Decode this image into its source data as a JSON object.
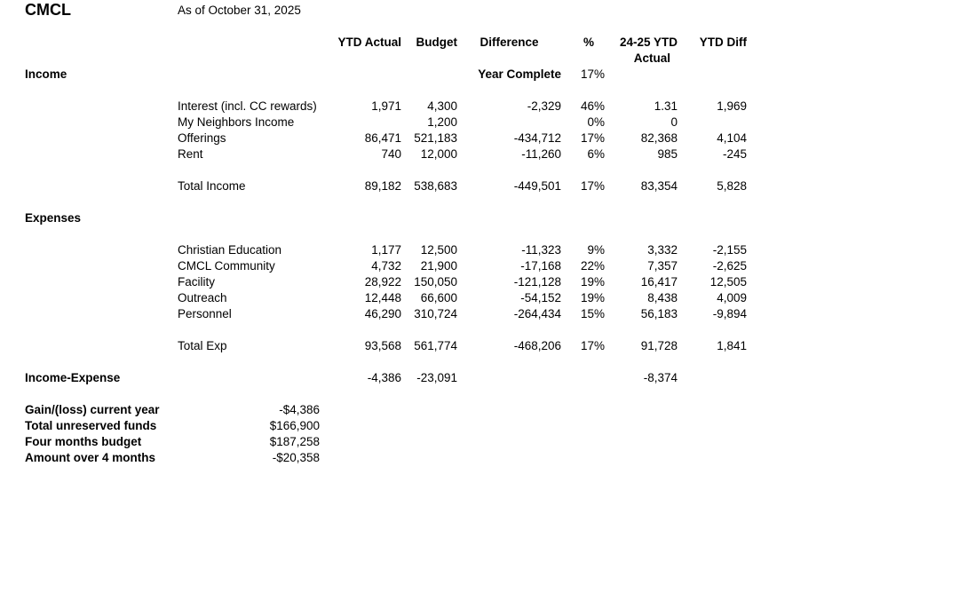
{
  "report": {
    "title": "CMCL",
    "as_of": "As of October 31, 2025",
    "columns": {
      "ytd_actual": "YTD Actual",
      "budget": "Budget",
      "difference": "Difference",
      "pct": "%",
      "prior_ytd_line1": "24-25 YTD",
      "prior_ytd_line2": "Actual",
      "ytd_diff": "YTD Diff"
    },
    "year_complete": {
      "label": "Year Complete",
      "value": "17%"
    },
    "sections": [
      {
        "label": "Income",
        "rows": [
          {
            "label": "Interest (incl. CC rewards)",
            "ytd_actual": "1,971",
            "budget": "4,300",
            "difference": "-2,329",
            "pct": "46%",
            "prior_ytd": "1.31",
            "ytd_diff": "1,969"
          },
          {
            "label": "My Neighbors Income",
            "ytd_actual": "",
            "budget": "1,200",
            "difference": "",
            "pct": "0%",
            "prior_ytd": "0",
            "ytd_diff": ""
          },
          {
            "label": "Offerings",
            "ytd_actual": "86,471",
            "budget": "521,183",
            "difference": "-434,712",
            "pct": "17%",
            "prior_ytd": "82,368",
            "ytd_diff": "4,104"
          },
          {
            "label": "Rent",
            "ytd_actual": "740",
            "budget": "12,000",
            "difference": "-11,260",
            "pct": "6%",
            "prior_ytd": "985",
            "ytd_diff": "-245"
          }
        ],
        "total": {
          "label": "Total Income",
          "ytd_actual": "89,182",
          "budget": "538,683",
          "difference": "-449,501",
          "pct": "17%",
          "prior_ytd": "83,354",
          "ytd_diff": "5,828"
        }
      },
      {
        "label": "Expenses",
        "rows": [
          {
            "label": "Christian Education",
            "ytd_actual": "1,177",
            "budget": "12,500",
            "difference": "-11,323",
            "pct": "9%",
            "prior_ytd": "3,332",
            "ytd_diff": "-2,155"
          },
          {
            "label": "CMCL Community",
            "ytd_actual": "4,732",
            "budget": "21,900",
            "difference": "-17,168",
            "pct": "22%",
            "prior_ytd": "7,357",
            "ytd_diff": "-2,625"
          },
          {
            "label": "Facility",
            "ytd_actual": "28,922",
            "budget": "150,050",
            "difference": "-121,128",
            "pct": "19%",
            "prior_ytd": "16,417",
            "ytd_diff": "12,505"
          },
          {
            "label": "Outreach",
            "ytd_actual": "12,448",
            "budget": "66,600",
            "difference": "-54,152",
            "pct": "19%",
            "prior_ytd": "8,438",
            "ytd_diff": "4,009"
          },
          {
            "label": "Personnel",
            "ytd_actual": "46,290",
            "budget": "310,724",
            "difference": "-264,434",
            "pct": "15%",
            "prior_ytd": "56,183",
            "ytd_diff": "-9,894"
          }
        ],
        "total": {
          "label": "Total Exp",
          "ytd_actual": "93,568",
          "budget": "561,774",
          "difference": "-468,206",
          "pct": "17%",
          "prior_ytd": "91,728",
          "ytd_diff": "1,841"
        }
      }
    ],
    "net": {
      "label": "Income-Expense",
      "ytd_actual": "-4,386",
      "budget": "-23,091",
      "prior_ytd": "-8,374"
    },
    "summary": [
      {
        "label": "Gain/(loss) current year",
        "value": "-$4,386"
      },
      {
        "label": "Total unreserved funds",
        "value": "$166,900"
      },
      {
        "label": "Four months budget",
        "value": "$187,258"
      },
      {
        "label": "Amount over 4 months",
        "value": "-$20,358"
      }
    ]
  }
}
